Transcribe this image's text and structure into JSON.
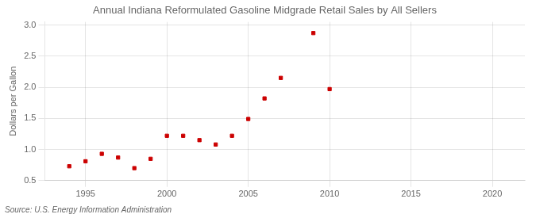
{
  "chart_data": {
    "type": "scatter",
    "title": "Annual Indiana Reformulated Gasoline Midgrade Retail Sales by All Sellers",
    "ylabel": "Dollars per Gallon",
    "annotations": [
      "Source: U.S. Energy Information Administration"
    ],
    "x": [
      1994,
      1995,
      1996,
      1997,
      1998,
      1999,
      2000,
      2001,
      2002,
      2003,
      2004,
      2005,
      2006,
      2007,
      2009,
      2010
    ],
    "values": [
      0.73,
      0.81,
      0.93,
      0.87,
      0.7,
      0.85,
      1.22,
      1.22,
      1.15,
      1.08,
      1.22,
      1.49,
      1.82,
      2.15,
      2.87,
      1.97
    ],
    "color": "#cc0000",
    "marker": "square",
    "xlim": [
      1992.5,
      2022
    ],
    "ylim": [
      0.5,
      3.05
    ],
    "xticks": [
      1995,
      2000,
      2005,
      2010,
      2015,
      2020
    ],
    "yticks": [
      0.5,
      {
        "value": 1.0,
        "label": "1.0"
      },
      1.5,
      {
        "value": 2.0,
        "label": "2.0"
      },
      2.5,
      {
        "value": 3.0,
        "label": "3.0"
      }
    ],
    "grid": true
  }
}
